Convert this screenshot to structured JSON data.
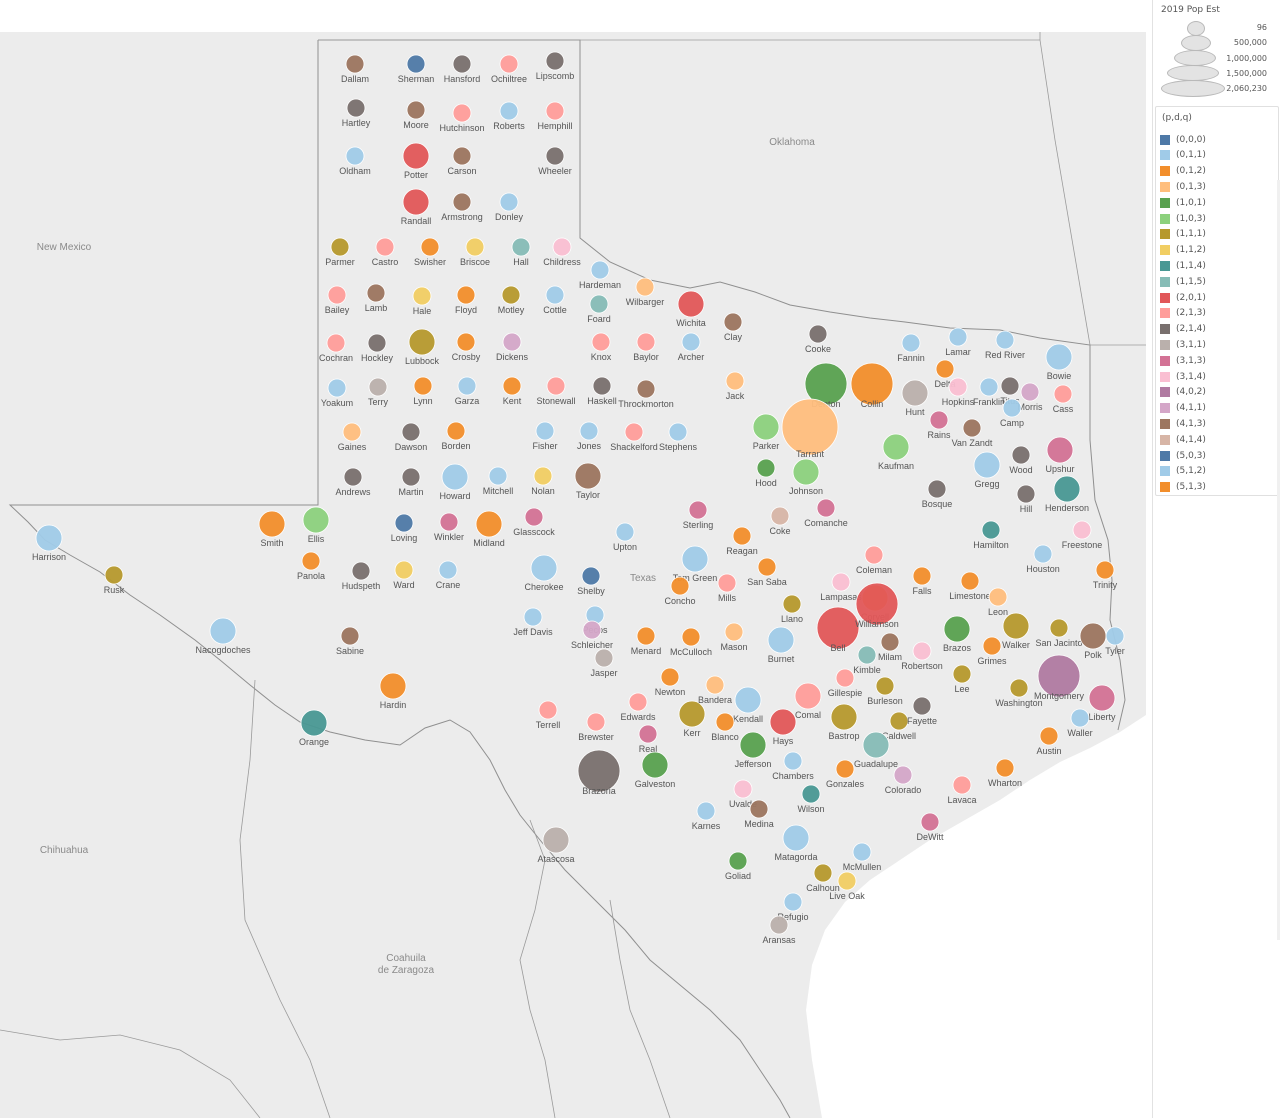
{
  "map": {
    "region_labels": [
      "New Mexico",
      "Oklahoma",
      "Texas",
      "Chihuahua",
      "Coahuila de Zaragoza"
    ],
    "counties": [
      {
        "name": "Dallam",
        "color": "#9c755f",
        "size": 1
      },
      {
        "name": "Sherman",
        "color": "#4e79a7",
        "size": 1
      },
      {
        "name": "Hansford",
        "color": "#79706e",
        "size": 1
      },
      {
        "name": "Ochiltree",
        "color": "#ff9d9a",
        "size": 1
      },
      {
        "name": "Lipscomb",
        "color": "#79706e",
        "size": 1
      },
      {
        "name": "Hartley",
        "color": "#79706e",
        "size": 1
      },
      {
        "name": "Moore",
        "color": "#9c755f",
        "size": 1
      },
      {
        "name": "Hutchinson",
        "color": "#ff9d9a",
        "size": 1
      },
      {
        "name": "Roberts",
        "color": "#a0cbe8",
        "size": 1
      },
      {
        "name": "Hemphill",
        "color": "#ff9d9a",
        "size": 1
      },
      {
        "name": "Oldham",
        "color": "#a0cbe8",
        "size": 1
      },
      {
        "name": "Potter",
        "color": "#e15759",
        "size": 2
      },
      {
        "name": "Carson",
        "color": "#9c755f",
        "size": 1
      },
      {
        "name": "Wheeler",
        "color": "#79706e",
        "size": 1
      },
      {
        "name": "Randall",
        "color": "#e15759",
        "size": 2
      },
      {
        "name": "Armstrong",
        "color": "#9c755f",
        "size": 1
      },
      {
        "name": "Donley",
        "color": "#a0cbe8",
        "size": 1
      },
      {
        "name": "Parmer",
        "color": "#b6992d",
        "size": 1
      },
      {
        "name": "Castro",
        "color": "#ff9d9a",
        "size": 1
      },
      {
        "name": "Swisher",
        "color": "#f28e2b",
        "size": 1
      },
      {
        "name": "Briscoe",
        "color": "#f1ce63",
        "size": 1
      },
      {
        "name": "Hall",
        "color": "#86bcb6",
        "size": 1
      },
      {
        "name": "Childress",
        "color": "#fabfd2",
        "size": 1
      },
      {
        "name": "Hardeman",
        "color": "#a0cbe8",
        "size": 1
      },
      {
        "name": "Bailey",
        "color": "#ff9d9a",
        "size": 1
      },
      {
        "name": "Lamb",
        "color": "#9c755f",
        "size": 1
      },
      {
        "name": "Hale",
        "color": "#f1ce63",
        "size": 1
      },
      {
        "name": "Floyd",
        "color": "#f28e2b",
        "size": 1
      },
      {
        "name": "Motley",
        "color": "#b6992d",
        "size": 1
      },
      {
        "name": "Cottle",
        "color": "#a0cbe8",
        "size": 1
      },
      {
        "name": "Foard",
        "color": "#86bcb6",
        "size": 1
      },
      {
        "name": "Wilbarger",
        "color": "#ffbe7d",
        "size": 1
      },
      {
        "name": "Wichita",
        "color": "#e15759",
        "size": 2
      },
      {
        "name": "Clay",
        "color": "#9c755f",
        "size": 1
      },
      {
        "name": "Cochran",
        "color": "#ff9d9a",
        "size": 1
      },
      {
        "name": "Hockley",
        "color": "#79706e",
        "size": 1
      },
      {
        "name": "Lubbock",
        "color": "#b6992d",
        "size": 2
      },
      {
        "name": "Crosby",
        "color": "#f28e2b",
        "size": 1
      },
      {
        "name": "Dickens",
        "color": "#d4a6c8",
        "size": 1
      },
      {
        "name": "Knox",
        "color": "#ff9d9a",
        "size": 1
      },
      {
        "name": "Baylor",
        "color": "#ff9d9a",
        "size": 1
      },
      {
        "name": "Archer",
        "color": "#a0cbe8",
        "size": 1
      },
      {
        "name": "Cooke",
        "color": "#79706e",
        "size": 1
      },
      {
        "name": "Yoakum",
        "color": "#a0cbe8",
        "size": 1
      },
      {
        "name": "Terry",
        "color": "#bab0ac",
        "size": 1
      },
      {
        "name": "Lynn",
        "color": "#f28e2b",
        "size": 1
      },
      {
        "name": "Garza",
        "color": "#a0cbe8",
        "size": 1
      },
      {
        "name": "Kent",
        "color": "#f28e2b",
        "size": 1
      },
      {
        "name": "Stonewall",
        "color": "#ff9d9a",
        "size": 1
      },
      {
        "name": "Haskell",
        "color": "#79706e",
        "size": 1
      },
      {
        "name": "Throckmorton",
        "color": "#9c755f",
        "size": 1
      },
      {
        "name": "Jack",
        "color": "#ffbe7d",
        "size": 1
      },
      {
        "name": "Denton",
        "color": "#59a14f",
        "size": 3
      },
      {
        "name": "Collin",
        "color": "#f28e2b",
        "size": 3
      },
      {
        "name": "Fannin",
        "color": "#a0cbe8",
        "size": 1
      },
      {
        "name": "Lamar",
        "color": "#a0cbe8",
        "size": 1
      },
      {
        "name": "Red River",
        "color": "#a0cbe8",
        "size": 1
      },
      {
        "name": "Bowie",
        "color": "#a0cbe8",
        "size": 2
      },
      {
        "name": "Gaines",
        "color": "#ffbe7d",
        "size": 1
      },
      {
        "name": "Dawson",
        "color": "#79706e",
        "size": 1
      },
      {
        "name": "Borden",
        "color": "#f28e2b",
        "size": 1
      },
      {
        "name": "Fisher",
        "color": "#a0cbe8",
        "size": 1
      },
      {
        "name": "Jones",
        "color": "#a0cbe8",
        "size": 1
      },
      {
        "name": "Shackelford",
        "color": "#ff9d9a",
        "size": 1
      },
      {
        "name": "Stephens",
        "color": "#a0cbe8",
        "size": 1
      },
      {
        "name": "Parker",
        "color": "#8cd17d",
        "size": 2
      },
      {
        "name": "Tarrant",
        "color": "#ffbe7d",
        "size": 4
      },
      {
        "name": "Hunt",
        "color": "#bab0ac",
        "size": 2
      },
      {
        "name": "Delta",
        "color": "#f28e2b",
        "size": 1
      },
      {
        "name": "Hopkins",
        "color": "#fabfd2",
        "size": 1
      },
      {
        "name": "Franklin",
        "color": "#a0cbe8",
        "size": 1
      },
      {
        "name": "Titus",
        "color": "#79706e",
        "size": 1
      },
      {
        "name": "Morris",
        "color": "#d4a6c8",
        "size": 1
      },
      {
        "name": "Cass",
        "color": "#ff9d9a",
        "size": 1
      },
      {
        "name": "Camp",
        "color": "#a0cbe8",
        "size": 1
      },
      {
        "name": "Andrews",
        "color": "#79706e",
        "size": 1
      },
      {
        "name": "Martin",
        "color": "#79706e",
        "size": 1
      },
      {
        "name": "Howard",
        "color": "#a0cbe8",
        "size": 2
      },
      {
        "name": "Mitchell",
        "color": "#a0cbe8",
        "size": 1
      },
      {
        "name": "Nolan",
        "color": "#f1ce63",
        "size": 1
      },
      {
        "name": "Taylor",
        "color": "#9c755f",
        "size": 2
      },
      {
        "name": "Hood",
        "color": "#59a14f",
        "size": 1
      },
      {
        "name": "Johnson",
        "color": "#8cd17d",
        "size": 2
      },
      {
        "name": "Kaufman",
        "color": "#8cd17d",
        "size": 2
      },
      {
        "name": "Rains",
        "color": "#d37295",
        "size": 1
      },
      {
        "name": "Van Zandt",
        "color": "#9c755f",
        "size": 1
      },
      {
        "name": "Wood",
        "color": "#79706e",
        "size": 1
      },
      {
        "name": "Upshur",
        "color": "#d37295",
        "size": 2
      },
      {
        "name": "Gregg",
        "color": "#a0cbe8",
        "size": 2
      },
      {
        "name": "Harrison",
        "color": "#a0cbe8",
        "size": 2
      },
      {
        "name": "Smith",
        "color": "#f28e2b",
        "size": 2
      },
      {
        "name": "Ellis",
        "color": "#8cd17d",
        "size": 2
      },
      {
        "name": "Loving",
        "color": "#4e79a7",
        "size": 1
      },
      {
        "name": "Winkler",
        "color": "#d37295",
        "size": 1
      },
      {
        "name": "Midland",
        "color": "#f28e2b",
        "size": 2
      },
      {
        "name": "Glasscock",
        "color": "#d37295",
        "size": 1
      },
      {
        "name": "Sterling",
        "color": "#d37295",
        "size": 1
      },
      {
        "name": "Coke",
        "color": "#d7b5a6",
        "size": 1
      },
      {
        "name": "Comanche",
        "color": "#d37295",
        "size": 1
      },
      {
        "name": "Bosque",
        "color": "#79706e",
        "size": 1
      },
      {
        "name": "Hill",
        "color": "#79706e",
        "size": 1
      },
      {
        "name": "Henderson",
        "color": "#499894",
        "size": 2
      },
      {
        "name": "Rusk",
        "color": "#b6992d",
        "size": 1
      },
      {
        "name": "Panola",
        "color": "#f28e2b",
        "size": 1
      },
      {
        "name": "Hudspeth",
        "color": "#79706e",
        "size": 1
      },
      {
        "name": "Ward",
        "color": "#f1ce63",
        "size": 1
      },
      {
        "name": "Crane",
        "color": "#a0cbe8",
        "size": 1
      },
      {
        "name": "Upton",
        "color": "#a0cbe8",
        "size": 1
      },
      {
        "name": "Reagan",
        "color": "#f28e2b",
        "size": 1
      },
      {
        "name": "Coleman",
        "color": "#ff9d9a",
        "size": 1
      },
      {
        "name": "Hamilton",
        "color": "#499894",
        "size": 1
      },
      {
        "name": "Freestone",
        "color": "#fabfd2",
        "size": 1
      },
      {
        "name": "Cherokee",
        "color": "#a0cbe8",
        "size": 2
      },
      {
        "name": "Shelby",
        "color": "#4e79a7",
        "size": 1
      },
      {
        "name": "Tom Green",
        "color": "#a0cbe8",
        "size": 2
      },
      {
        "name": "Concho",
        "color": "#f28e2b",
        "size": 1
      },
      {
        "name": "Mills",
        "color": "#ff9d9a",
        "size": 1
      },
      {
        "name": "San Saba",
        "color": "#f28e2b",
        "size": 1
      },
      {
        "name": "Lampasas",
        "color": "#fabfd2",
        "size": 1
      },
      {
        "name": "Coryell",
        "color": "#f28e2b",
        "size": 2
      },
      {
        "name": "Falls",
        "color": "#f28e2b",
        "size": 1
      },
      {
        "name": "Limestone",
        "color": "#f28e2b",
        "size": 1
      },
      {
        "name": "Leon",
        "color": "#ffbe7d",
        "size": 1
      },
      {
        "name": "Houston",
        "color": "#a0cbe8",
        "size": 1
      },
      {
        "name": "Trinity",
        "color": "#f28e2b",
        "size": 1
      },
      {
        "name": "Nacogdoches",
        "color": "#a0cbe8",
        "size": 2
      },
      {
        "name": "Sabine",
        "color": "#9c755f",
        "size": 1
      },
      {
        "name": "Jeff Davis",
        "color": "#a0cbe8",
        "size": 1
      },
      {
        "name": "Pecos",
        "color": "#a0cbe8",
        "size": 1
      },
      {
        "name": "Schleicher",
        "color": "#d4a6c8",
        "size": 1
      },
      {
        "name": "Menard",
        "color": "#f28e2b",
        "size": 1
      },
      {
        "name": "McCulloch",
        "color": "#f28e2b",
        "size": 1
      },
      {
        "name": "Mason",
        "color": "#ffbe7d",
        "size": 1
      },
      {
        "name": "Llano",
        "color": "#b6992d",
        "size": 1
      },
      {
        "name": "Burnet",
        "color": "#a0cbe8",
        "size": 2
      },
      {
        "name": "Bell",
        "color": "#e15759",
        "size": 3
      },
      {
        "name": "Williamson",
        "color": "#e15759",
        "size": 3
      },
      {
        "name": "Milam",
        "color": "#9c755f",
        "size": 1
      },
      {
        "name": "Robertson",
        "color": "#fabfd2",
        "size": 1
      },
      {
        "name": "Brazos",
        "color": "#59a14f",
        "size": 2
      },
      {
        "name": "Grimes",
        "color": "#f28e2b",
        "size": 1
      },
      {
        "name": "Walker",
        "color": "#b6992d",
        "size": 2
      },
      {
        "name": "San Jacinto",
        "color": "#b6992d",
        "size": 1
      },
      {
        "name": "Polk",
        "color": "#9c755f",
        "size": 2
      },
      {
        "name": "Tyler",
        "color": "#a0cbe8",
        "size": 1
      },
      {
        "name": "Jasper",
        "color": "#bab0ac",
        "size": 1
      },
      {
        "name": "Newton",
        "color": "#f28e2b",
        "size": 1
      },
      {
        "name": "Kimble",
        "color": "#86bcb6",
        "size": 1
      },
      {
        "name": "Gillespie",
        "color": "#ff9d9a",
        "size": 1
      },
      {
        "name": "Burleson",
        "color": "#b6992d",
        "size": 1
      },
      {
        "name": "Lee",
        "color": "#b6992d",
        "size": 1
      },
      {
        "name": "Washington",
        "color": "#b6992d",
        "size": 1
      },
      {
        "name": "Montgomery",
        "color": "#b07aa1",
        "size": 3
      },
      {
        "name": "Liberty",
        "color": "#d37295",
        "size": 2
      },
      {
        "name": "Hardin",
        "color": "#f28e2b",
        "size": 2
      },
      {
        "name": "Orange",
        "color": "#499894",
        "size": 2
      },
      {
        "name": "Terrell",
        "color": "#ff9d9a",
        "size": 1
      },
      {
        "name": "Brewster",
        "color": "#ff9d9a",
        "size": 1
      },
      {
        "name": "Edwards",
        "color": "#ff9d9a",
        "size": 1
      },
      {
        "name": "Real",
        "color": "#d37295",
        "size": 1
      },
      {
        "name": "Kerr",
        "color": "#b6992d",
        "size": 2
      },
      {
        "name": "Bandera",
        "color": "#ffbe7d",
        "size": 1
      },
      {
        "name": "Kendall",
        "color": "#a0cbe8",
        "size": 2
      },
      {
        "name": "Blanco",
        "color": "#f28e2b",
        "size": 1
      },
      {
        "name": "Hays",
        "color": "#e15759",
        "size": 2
      },
      {
        "name": "Comal",
        "color": "#ff9d9a",
        "size": 2
      },
      {
        "name": "Bastrop",
        "color": "#b6992d",
        "size": 2
      },
      {
        "name": "Caldwell",
        "color": "#b6992d",
        "size": 1
      },
      {
        "name": "Fayette",
        "color": "#79706e",
        "size": 1
      },
      {
        "name": "Waller",
        "color": "#a0cbe8",
        "size": 1
      },
      {
        "name": "Austin",
        "color": "#f28e2b",
        "size": 1
      },
      {
        "name": "Jefferson",
        "color": "#59a14f",
        "size": 2
      },
      {
        "name": "Chambers",
        "color": "#a0cbe8",
        "size": 1
      },
      {
        "name": "Guadalupe",
        "color": "#86bcb6",
        "size": 2
      },
      {
        "name": "Gonzales",
        "color": "#f28e2b",
        "size": 1
      },
      {
        "name": "Colorado",
        "color": "#d4a6c8",
        "size": 1
      },
      {
        "name": "Lavaca",
        "color": "#ff9d9a",
        "size": 1
      },
      {
        "name": "Wharton",
        "color": "#f28e2b",
        "size": 1
      },
      {
        "name": "Brazoria",
        "color": "#79706e",
        "size": 3
      },
      {
        "name": "Galveston",
        "color": "#59a14f",
        "size": 2
      },
      {
        "name": "Uvalde",
        "color": "#fabfd2",
        "size": 1
      },
      {
        "name": "Medina",
        "color": "#9c755f",
        "size": 1
      },
      {
        "name": "Wilson",
        "color": "#499894",
        "size": 1
      },
      {
        "name": "Karnes",
        "color": "#a0cbe8",
        "size": 1
      },
      {
        "name": "DeWitt",
        "color": "#d37295",
        "size": 1
      },
      {
        "name": "Atascosa",
        "color": "#bab0ac",
        "size": 2
      },
      {
        "name": "Matagorda",
        "color": "#a0cbe8",
        "size": 2
      },
      {
        "name": "McMullen",
        "color": "#a0cbe8",
        "size": 1
      },
      {
        "name": "Goliad",
        "color": "#59a14f",
        "size": 1
      },
      {
        "name": "Calhoun",
        "color": "#b6992d",
        "size": 1
      },
      {
        "name": "Live Oak",
        "color": "#f1ce63",
        "size": 1
      },
      {
        "name": "Refugio",
        "color": "#a0cbe8",
        "size": 1
      },
      {
        "name": "Aransas",
        "color": "#bab0ac",
        "size": 1
      },
      {
        "name": "San Patricio",
        "color": "#f1ce63",
        "size": 2
      },
      {
        "name": "Nueces",
        "color": "#f28e2b",
        "size": 2
      }
    ]
  },
  "size_legend": {
    "title": "2019 Pop Est",
    "entries": [
      "96",
      "500,000",
      "1,000,000",
      "1,500,000",
      "2,060,230"
    ]
  },
  "color_legend": {
    "title": "(p,d,q)",
    "items": [
      {
        "label": "(0,0,0)",
        "color": "#4e79a7"
      },
      {
        "label": "(0,1,1)",
        "color": "#a0cbe8"
      },
      {
        "label": "(0,1,2)",
        "color": "#f28e2b"
      },
      {
        "label": "(0,1,3)",
        "color": "#ffbe7d"
      },
      {
        "label": "(1,0,1)",
        "color": "#59a14f"
      },
      {
        "label": "(1,0,3)",
        "color": "#8cd17d"
      },
      {
        "label": "(1,1,1)",
        "color": "#b6992d"
      },
      {
        "label": "(1,1,2)",
        "color": "#f1ce63"
      },
      {
        "label": "(1,1,4)",
        "color": "#499894"
      },
      {
        "label": "(1,1,5)",
        "color": "#86bcb6"
      },
      {
        "label": "(2,0,1)",
        "color": "#e15759"
      },
      {
        "label": "(2,1,3)",
        "color": "#ff9d9a"
      },
      {
        "label": "(2,1,4)",
        "color": "#79706e"
      },
      {
        "label": "(3,1,1)",
        "color": "#bab0ac"
      },
      {
        "label": "(3,1,3)",
        "color": "#d37295"
      },
      {
        "label": "(3,1,4)",
        "color": "#fabfd2"
      },
      {
        "label": "(4,0,2)",
        "color": "#b07aa1"
      },
      {
        "label": "(4,1,1)",
        "color": "#d4a6c8"
      },
      {
        "label": "(4,1,3)",
        "color": "#9d7660"
      },
      {
        "label": "(4,1,4)",
        "color": "#d7b5a6"
      },
      {
        "label": "(5,0,3)",
        "color": "#4e79a7"
      },
      {
        "label": "(5,1,2)",
        "color": "#a0cbe8"
      },
      {
        "label": "(5,1,3)",
        "color": "#f28e2b"
      }
    ]
  }
}
